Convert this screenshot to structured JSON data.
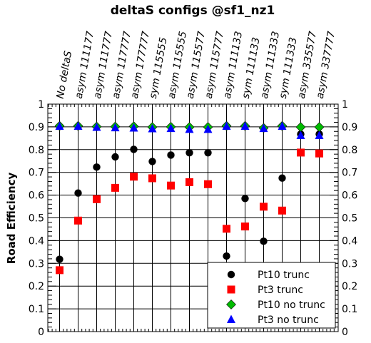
{
  "chart_data": {
    "type": "scatter",
    "title": "deltaS configs @sf1_nz1",
    "xlabel": "",
    "ylabel": "Road Efficiency",
    "ylim": [
      0,
      1
    ],
    "yticks": [
      "0",
      "0.1",
      "0.2",
      "0.3",
      "0.4",
      "0.5",
      "0.6",
      "0.7",
      "0.8",
      "0.9",
      "1"
    ],
    "grid": true,
    "legend_position": "bottom-right",
    "categories": [
      "No deltaS",
      "asym 111177",
      "asym 111777",
      "asym 117777",
      "asym 177777",
      "sym 115555",
      "asym 115555",
      "asym 115577",
      "asym 115777",
      "asym 111133",
      "sym 111133",
      "asym 111333",
      "sym 111333",
      "asym 335577",
      "asym 337777"
    ],
    "series": [
      {
        "name": "Pt10 trunc",
        "marker": "circle",
        "color": "#000000",
        "values": [
          0.318,
          0.609,
          0.723,
          0.768,
          0.801,
          0.748,
          0.776,
          0.786,
          0.786,
          0.332,
          0.585,
          0.397,
          0.675,
          0.868,
          0.868
        ]
      },
      {
        "name": "Pt3 trunc",
        "marker": "square",
        "color": "#ff0000",
        "values": [
          0.27,
          0.488,
          0.582,
          0.632,
          0.681,
          0.674,
          0.642,
          0.657,
          0.648,
          0.452,
          0.462,
          0.549,
          0.532,
          0.787,
          0.783
        ]
      },
      {
        "name": "Pt10 no trunc",
        "marker": "diamond",
        "color": "#00bb00",
        "values": [
          0.904,
          0.904,
          0.901,
          0.901,
          0.902,
          0.899,
          0.9,
          0.899,
          0.899,
          0.904,
          0.904,
          0.895,
          0.904,
          0.899,
          0.899
        ]
      },
      {
        "name": "Pt3 no trunc",
        "marker": "triangle",
        "color": "#0000ff",
        "values": [
          0.903,
          0.903,
          0.898,
          0.896,
          0.895,
          0.892,
          0.893,
          0.889,
          0.889,
          0.903,
          0.903,
          0.893,
          0.903,
          0.862,
          0.862
        ]
      }
    ]
  }
}
